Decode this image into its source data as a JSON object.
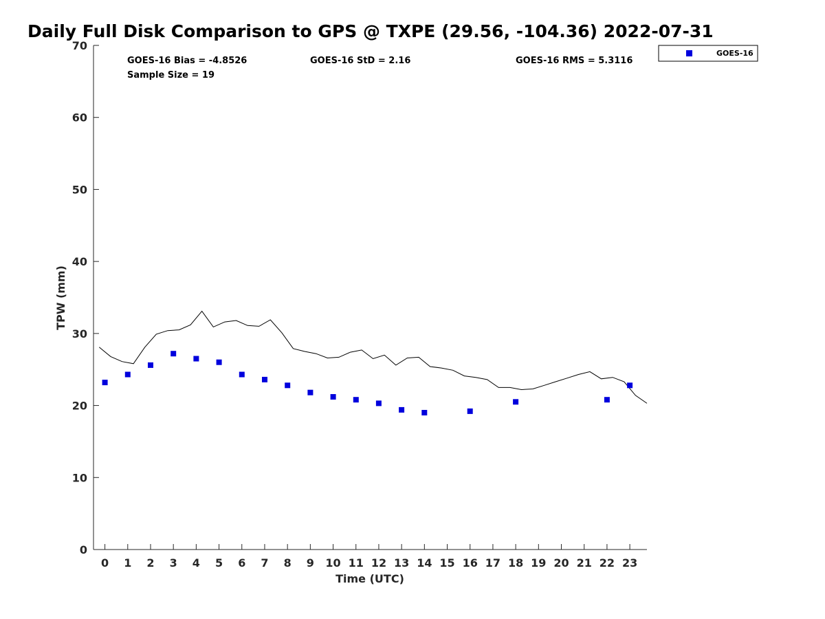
{
  "chart_data": {
    "type": "scatter",
    "title": "Daily Full Disk Comparison to GPS @ TXPE (29.56, -104.36) 2022-07-31",
    "xlabel": "Time (UTC)",
    "ylabel": "TPW (mm)",
    "xlim": [
      -0.5,
      23.75
    ],
    "ylim": [
      0,
      70
    ],
    "x_ticks": [
      "0",
      "1",
      "2",
      "3",
      "4",
      "5",
      "6",
      "7",
      "8",
      "9",
      "10",
      "11",
      "12",
      "13",
      "14",
      "15",
      "16",
      "17",
      "18",
      "19",
      "20",
      "21",
      "22",
      "23"
    ],
    "y_ticks": [
      "0",
      "10",
      "20",
      "30",
      "40",
      "50",
      "60",
      "70"
    ],
    "grid": false,
    "legend_position": "top-right",
    "stats": {
      "bias": "GOES-16 Bias = -4.8526",
      "std": "GOES-16 StD = 2.16",
      "rms": "GOES-16 RMS = 5.3116",
      "sample": "Sample Size = 19"
    },
    "series": [
      {
        "name": "GOES-16",
        "type": "scatter",
        "color": "#0000dd",
        "x": [
          0,
          1,
          2,
          3,
          4,
          5,
          6,
          7,
          8,
          9,
          10,
          11,
          12,
          13,
          14,
          16,
          18,
          22,
          23
        ],
        "y": [
          23.2,
          24.3,
          25.6,
          27.2,
          26.5,
          26.0,
          24.3,
          23.6,
          22.8,
          21.8,
          21.2,
          20.8,
          20.3,
          19.4,
          19.0,
          19.2,
          20.5,
          20.8,
          22.8
        ]
      },
      {
        "type": "line",
        "color": "#000000",
        "x": [
          -0.25,
          0.25,
          0.75,
          1.25,
          1.75,
          2.25,
          2.75,
          3.25,
          3.75,
          4.25,
          4.75,
          5.25,
          5.75,
          6.25,
          6.75,
          7.25,
          7.75,
          8.25,
          8.75,
          9.25,
          9.75,
          10.25,
          10.75,
          11.25,
          11.75,
          12.25,
          12.75,
          13.25,
          13.75,
          14.25,
          14.75,
          15.25,
          15.75,
          16.25,
          16.75,
          17.25,
          17.75,
          18.25,
          18.75,
          19.25,
          19.75,
          20.25,
          20.75,
          21.25,
          21.75,
          22.25,
          22.75,
          23.25,
          23.75
        ],
        "y": [
          28.1,
          26.8,
          26.1,
          25.8,
          28.1,
          29.9,
          30.4,
          30.5,
          31.2,
          33.1,
          30.9,
          31.6,
          31.8,
          31.1,
          31.0,
          31.9,
          30.1,
          27.9,
          27.5,
          27.2,
          26.6,
          26.7,
          27.4,
          27.7,
          26.5,
          27.0,
          25.6,
          26.6,
          26.7,
          25.4,
          25.2,
          24.9,
          24.1,
          23.9,
          23.6,
          22.5,
          22.5,
          22.2,
          22.3,
          22.8,
          23.3,
          23.8,
          24.3,
          24.7,
          23.7,
          23.9,
          23.3,
          21.4,
          20.3
        ]
      }
    ]
  }
}
